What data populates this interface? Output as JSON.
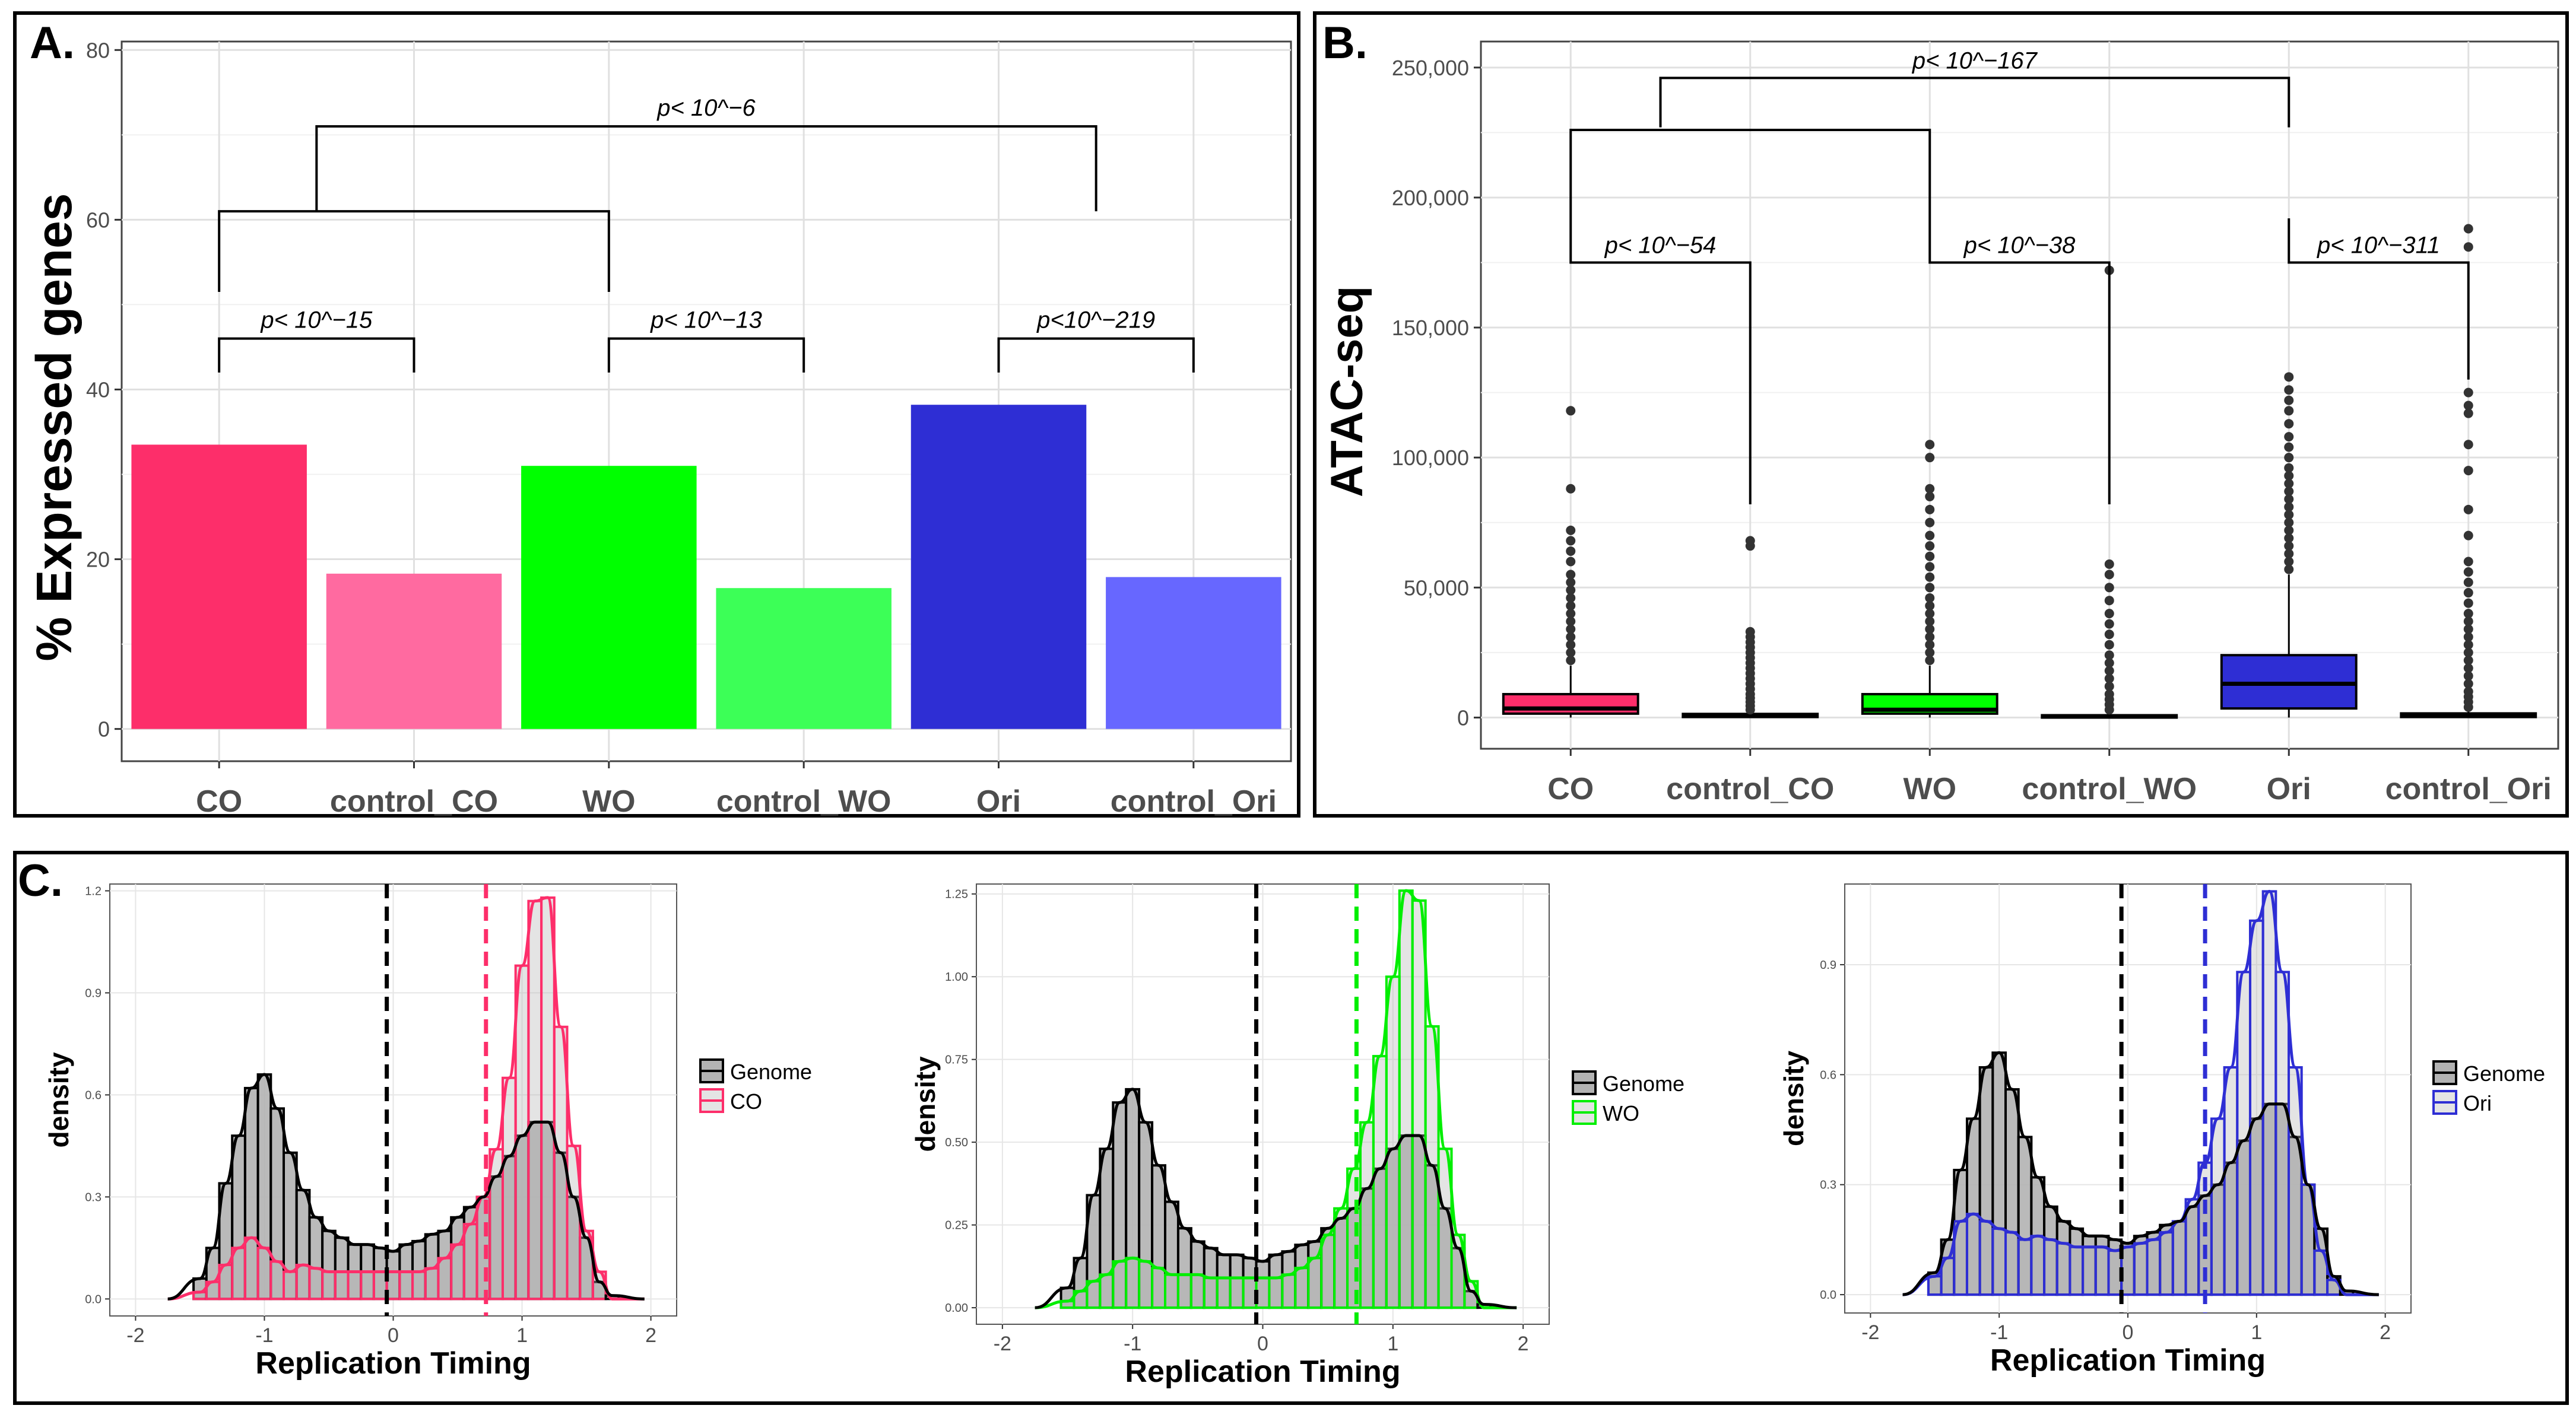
{
  "colors": {
    "CO": "#fd2e6a",
    "control_CO": "#ff6aa0",
    "WO": "#00ff00",
    "control_WO": "#3cff57",
    "Ori": "#2e2ed4",
    "control_Ori": "#6767ff",
    "genome": "#b3b3b3"
  },
  "panel_a": {
    "label": "A.",
    "chart_data": {
      "type": "bar",
      "ylabel": "% Expressed genes",
      "categories": [
        "CO",
        "control_CO",
        "WO",
        "control_WO",
        "Ori",
        "control_Ori"
      ],
      "values": [
        33.5,
        18.3,
        31,
        16.6,
        38.2,
        17.9
      ],
      "ylim": [
        -3.8,
        81
      ],
      "yticks": [
        0,
        20,
        40,
        60,
        80
      ],
      "ytick_labels": [
        "0",
        "20",
        "40",
        "60",
        "80"
      ],
      "annotations": [
        {
          "text": "p< 10^−15",
          "left": 0,
          "right": 1,
          "leg_bottom": 42,
          "bar": 46
        },
        {
          "text": "p< 10^−13",
          "left": 2,
          "right": 3,
          "leg_bottom": 42,
          "bar": 46
        },
        {
          "text": "p<10^−219",
          "left": 4,
          "right": 5,
          "leg_bottom": 42,
          "bar": 46
        },
        {
          "text": "p< 10^−6",
          "left": 0.5,
          "right": 4.5,
          "leg_bottom": 61,
          "bar": 71
        }
      ],
      "bracket_mid_levels": [
        {
          "left": 0,
          "right": 2,
          "leg_bottom": 51.5,
          "bar": 61
        }
      ]
    }
  },
  "panel_b": {
    "label": "B.",
    "chart_data": {
      "type": "box",
      "ylabel": "ATAC-seq",
      "categories": [
        "CO",
        "control_CO",
        "WO",
        "control_WO",
        "Ori",
        "control_Ori"
      ],
      "ylim": [
        -12000,
        260000
      ],
      "yticks": [
        0,
        50000,
        100000,
        150000,
        200000,
        250000
      ],
      "ytick_labels": [
        "0",
        "50,000",
        "100,000",
        "150,000",
        "200,000",
        "250,000"
      ],
      "boxes": [
        {
          "q1": 1500,
          "median": 3500,
          "q3": 9000,
          "lower": 0,
          "upper": 20000,
          "outliers": [
            22000,
            25000,
            28000,
            31000,
            34000,
            37000,
            40000,
            43000,
            46000,
            49000,
            52000,
            55000,
            60000,
            64000,
            68000,
            72000,
            88000,
            118000
          ]
        },
        {
          "q1": 200,
          "median": 700,
          "q3": 1400,
          "lower": 0,
          "upper": 2500,
          "outliers": [
            3000,
            4500,
            6000,
            7500,
            9000,
            11000,
            13000,
            15000,
            17000,
            19000,
            21000,
            23000,
            25000,
            27000,
            29000,
            31000,
            33000,
            66000,
            68000
          ]
        },
        {
          "q1": 1500,
          "median": 3000,
          "q3": 9000,
          "lower": 0,
          "upper": 20000,
          "outliers": [
            22000,
            25000,
            28000,
            31000,
            34000,
            37000,
            40000,
            43000,
            46000,
            50000,
            54000,
            58000,
            62000,
            66000,
            70000,
            75000,
            80000,
            85000,
            88000,
            100000,
            105000
          ]
        },
        {
          "q1": 100,
          "median": 400,
          "q3": 900,
          "lower": 0,
          "upper": 1500,
          "outliers": [
            3000,
            5000,
            7000,
            9000,
            12000,
            15000,
            18000,
            21000,
            24000,
            28000,
            32000,
            36000,
            40000,
            45000,
            50000,
            55000,
            59000,
            172000
          ]
        },
        {
          "q1": 3500,
          "median": 13000,
          "q3": 24000,
          "lower": 0,
          "upper": 55000,
          "outliers": [
            57000,
            60000,
            63000,
            66000,
            69000,
            72000,
            75000,
            78000,
            81000,
            84000,
            87000,
            90000,
            93000,
            96000,
            100000,
            104000,
            108000,
            113000,
            118000,
            122000,
            126000,
            131000
          ]
        },
        {
          "q1": 200,
          "median": 800,
          "q3": 1600,
          "lower": 0,
          "upper": 3000,
          "outliers": [
            4000,
            6000,
            8000,
            10000,
            13000,
            16000,
            19000,
            22000,
            25000,
            28000,
            31000,
            34000,
            37000,
            40000,
            44000,
            48000,
            52000,
            56000,
            60000,
            70000,
            80000,
            95000,
            105000,
            117000,
            120000,
            125000,
            181000,
            188000
          ]
        }
      ],
      "annotations": [
        {
          "text": "p< 10^−54",
          "left": 0,
          "right": 1,
          "leg_top": 192000,
          "bar": 175000,
          "right_bottom": 82000
        },
        {
          "text": "p< 10^−38",
          "left": 2,
          "right": 3,
          "leg_top": 192000,
          "bar": 175000,
          "right_bottom": 82000
        },
        {
          "text": "p< 10^−311",
          "left": 4,
          "right": 5,
          "leg_top": 192000,
          "bar": 175000,
          "right_bottom": 130000
        },
        {
          "text": "p< 10^−167",
          "left": 0.5,
          "right": 4,
          "leg_top": 227000,
          "bar": 246000,
          "right_bottom": 227000
        }
      ],
      "bracket_mid_levels": [
        {
          "left": 0,
          "right": 2,
          "leg_top": 192000,
          "bar": 226000
        }
      ]
    }
  },
  "panel_c": {
    "label": "C.",
    "xlabel": "Replication Timing",
    "ylabel": "density",
    "xticks": [
      -2,
      -1,
      0,
      1,
      2
    ],
    "xtick_labels": [
      "-2",
      "-1",
      "0",
      "1",
      "2"
    ],
    "genome_mean": -0.05,
    "bin_centers": [
      -1.5,
      -1.4,
      -1.3,
      -1.2,
      -1.1,
      -1.0,
      -0.9,
      -0.8,
      -0.7,
      -0.6,
      -0.5,
      -0.4,
      -0.3,
      -0.2,
      -0.1,
      0.0,
      0.1,
      0.2,
      0.3,
      0.4,
      0.5,
      0.6,
      0.7,
      0.8,
      0.9,
      1.0,
      1.1,
      1.2,
      1.3,
      1.4,
      1.5,
      1.6,
      1.7
    ],
    "genome_bins": [
      0.06,
      0.15,
      0.34,
      0.48,
      0.62,
      0.66,
      0.56,
      0.43,
      0.32,
      0.24,
      0.2,
      0.18,
      0.16,
      0.16,
      0.15,
      0.14,
      0.16,
      0.17,
      0.19,
      0.2,
      0.24,
      0.27,
      0.3,
      0.36,
      0.42,
      0.48,
      0.52,
      0.52,
      0.43,
      0.3,
      0.18,
      0.05,
      0.01
    ],
    "plots": [
      {
        "name": "CO",
        "legend_genome": "Genome",
        "legend_sample": "CO",
        "ylim": [
          -0.05,
          1.22
        ],
        "yticks": [
          0,
          0.3,
          0.6,
          0.9,
          1.2
        ],
        "ytick_labels": [
          "0.0",
          "0.3",
          "0.6",
          "0.9",
          "1.2"
        ],
        "sample_mean": 0.72,
        "sample_bins": [
          0.02,
          0.05,
          0.1,
          0.15,
          0.18,
          0.15,
          0.11,
          0.08,
          0.1,
          0.09,
          0.08,
          0.08,
          0.08,
          0.08,
          0.08,
          0.08,
          0.08,
          0.08,
          0.09,
          0.12,
          0.16,
          0.22,
          0.3,
          0.44,
          0.65,
          0.98,
          1.17,
          1.18,
          0.8,
          0.45,
          0.2,
          0.08,
          0.0
        ]
      },
      {
        "name": "WO",
        "legend_genome": "Genome",
        "legend_sample": "WO",
        "ylim": [
          -0.05,
          1.28
        ],
        "yticks": [
          0,
          0.25,
          0.5,
          0.75,
          1.0,
          1.25
        ],
        "ytick_labels": [
          "0.00",
          "0.25",
          "0.50",
          "0.75",
          "1.00",
          "1.25"
        ],
        "sample_mean": 0.72,
        "sample_bins": [
          0.02,
          0.05,
          0.08,
          0.1,
          0.14,
          0.15,
          0.14,
          0.12,
          0.1,
          0.1,
          0.1,
          0.09,
          0.09,
          0.09,
          0.09,
          0.09,
          0.09,
          0.1,
          0.12,
          0.15,
          0.22,
          0.3,
          0.42,
          0.56,
          0.76,
          1.0,
          1.26,
          1.23,
          0.85,
          0.48,
          0.22,
          0.08,
          0.0
        ]
      },
      {
        "name": "Ori",
        "legend_genome": "Genome",
        "legend_sample": "Ori",
        "ylim": [
          -0.05,
          1.12
        ],
        "yticks": [
          0,
          0.3,
          0.6,
          0.9
        ],
        "ytick_labels": [
          "0.0",
          "0.3",
          "0.6",
          "0.9"
        ],
        "sample_mean": 0.6,
        "sample_bins": [
          0.05,
          0.1,
          0.2,
          0.22,
          0.2,
          0.18,
          0.17,
          0.15,
          0.16,
          0.15,
          0.14,
          0.13,
          0.13,
          0.13,
          0.12,
          0.13,
          0.14,
          0.15,
          0.17,
          0.2,
          0.26,
          0.36,
          0.48,
          0.62,
          0.88,
          1.02,
          1.1,
          0.88,
          0.62,
          0.3,
          0.12,
          0.04,
          0.0
        ]
      }
    ]
  }
}
